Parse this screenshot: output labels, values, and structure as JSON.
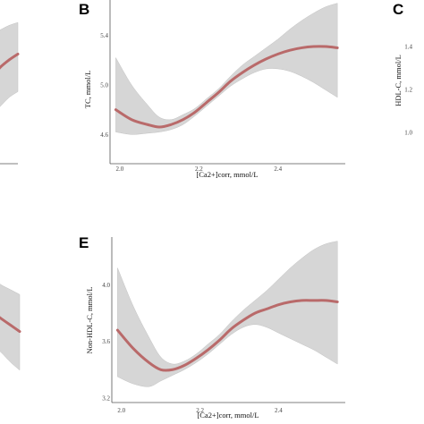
{
  "colors": {
    "curve": "#b96a6a",
    "band": "#d6d6d6",
    "band_edge": "#c2c2c2",
    "axis": "#555555"
  },
  "chart_data": [
    {
      "id": "A",
      "type": "line",
      "panel_letter": "",
      "xlabel": "",
      "ylabel": "",
      "xlim": [
        2.09,
        2.21
      ],
      "ylim": [
        0,
        10
      ],
      "xticks": [],
      "yticks": [],
      "x": [
        2.09,
        2.11,
        2.13,
        2.15,
        2.17,
        2.19,
        2.21
      ],
      "y": [
        3.4,
        4.0,
        4.7,
        5.4,
        6.1,
        6.6,
        7.0
      ],
      "lower": [
        1.0,
        1.6,
        2.3,
        2.9,
        3.5,
        4.1,
        4.5
      ],
      "upper": [
        7.0,
        7.3,
        7.9,
        8.3,
        8.6,
        8.9,
        9.1
      ]
    },
    {
      "id": "B",
      "type": "line",
      "panel_letter": "B",
      "xlabel": "[Ca2+]corr, mmol/L",
      "ylabel": "TC, mmol/L",
      "xlim": [
        1.98,
        2.57
      ],
      "ylim": [
        4.4,
        5.65
      ],
      "xticks": [
        "2.0",
        "2.2",
        "2.4"
      ],
      "xtick_values": [
        2.0,
        2.2,
        2.4
      ],
      "yticks": [
        "4.6",
        "5.0",
        "5.4"
      ],
      "ytick_values": [
        4.6,
        5.0,
        5.4
      ],
      "x": [
        1.99,
        2.03,
        2.07,
        2.1,
        2.13,
        2.16,
        2.19,
        2.22,
        2.25,
        2.28,
        2.31,
        2.34,
        2.37,
        2.4,
        2.43,
        2.46,
        2.49,
        2.52,
        2.55
      ],
      "y": [
        4.8,
        4.72,
        4.68,
        4.66,
        4.68,
        4.72,
        4.78,
        4.86,
        4.94,
        5.03,
        5.1,
        5.16,
        5.21,
        5.25,
        5.28,
        5.3,
        5.31,
        5.31,
        5.3
      ],
      "lower": [
        4.62,
        4.6,
        4.61,
        4.62,
        4.64,
        4.68,
        4.75,
        4.83,
        4.91,
        4.99,
        5.05,
        5.1,
        5.13,
        5.13,
        5.11,
        5.07,
        5.02,
        4.96,
        4.9
      ],
      "upper": [
        5.22,
        5.0,
        4.84,
        4.74,
        4.72,
        4.76,
        4.81,
        4.89,
        4.97,
        5.07,
        5.16,
        5.23,
        5.3,
        5.37,
        5.45,
        5.52,
        5.58,
        5.63,
        5.66
      ]
    },
    {
      "id": "C",
      "type": "line",
      "panel_letter": "C",
      "xlabel": "",
      "ylabel": "HDL-C, mmol/L",
      "xlim": [
        0,
        1
      ],
      "ylim": [
        0.95,
        1.45
      ],
      "xticks": [],
      "yticks": [
        "1.0",
        "1.2",
        "1.4"
      ],
      "ytick_values": [
        1.0,
        1.2,
        1.4
      ],
      "x": [],
      "y": [],
      "lower": [],
      "upper": []
    },
    {
      "id": "D",
      "type": "line",
      "panel_letter": "",
      "xlabel": "",
      "ylabel": "",
      "xlim": [
        2.09,
        2.21
      ],
      "ylim": [
        0,
        10
      ],
      "xticks": [],
      "yticks": [],
      "x": [
        2.09,
        2.11,
        2.13,
        2.15,
        2.17,
        2.19,
        2.21
      ],
      "y": [
        6.2,
        6.1,
        5.8,
        5.5,
        5.1,
        4.7,
        4.3
      ],
      "lower": [
        4.0,
        4.0,
        3.8,
        3.5,
        3.0,
        2.4,
        1.9
      ],
      "upper": [
        8.4,
        8.2,
        7.9,
        7.6,
        7.2,
        6.9,
        6.6
      ]
    },
    {
      "id": "E",
      "type": "line",
      "panel_letter": "E",
      "xlabel": "[Ca2+]corr, mmol/L",
      "ylabel": "Non-HDL-C, mmol/L",
      "xlim": [
        1.98,
        2.57
      ],
      "ylim": [
        3.18,
        4.32
      ],
      "xticks": [
        "2.0",
        "2.2",
        "2.4"
      ],
      "xtick_values": [
        2.0,
        2.2,
        2.4
      ],
      "yticks": [
        "3.2",
        "3.6",
        "4.0"
      ],
      "ytick_values": [
        3.2,
        3.6,
        4.0
      ],
      "x": [
        1.99,
        2.03,
        2.07,
        2.1,
        2.13,
        2.16,
        2.19,
        2.22,
        2.25,
        2.28,
        2.31,
        2.34,
        2.37,
        2.4,
        2.43,
        2.46,
        2.49,
        2.52,
        2.55
      ],
      "y": [
        3.68,
        3.55,
        3.45,
        3.4,
        3.4,
        3.43,
        3.48,
        3.54,
        3.61,
        3.69,
        3.75,
        3.8,
        3.83,
        3.86,
        3.88,
        3.89,
        3.89,
        3.89,
        3.88
      ],
      "lower": [
        3.35,
        3.3,
        3.28,
        3.32,
        3.36,
        3.4,
        3.45,
        3.51,
        3.58,
        3.65,
        3.7,
        3.72,
        3.7,
        3.66,
        3.62,
        3.58,
        3.54,
        3.49,
        3.44
      ],
      "upper": [
        4.12,
        3.85,
        3.63,
        3.49,
        3.44,
        3.46,
        3.51,
        3.58,
        3.65,
        3.74,
        3.82,
        3.89,
        3.96,
        4.04,
        4.12,
        4.19,
        4.25,
        4.29,
        4.31
      ]
    }
  ]
}
